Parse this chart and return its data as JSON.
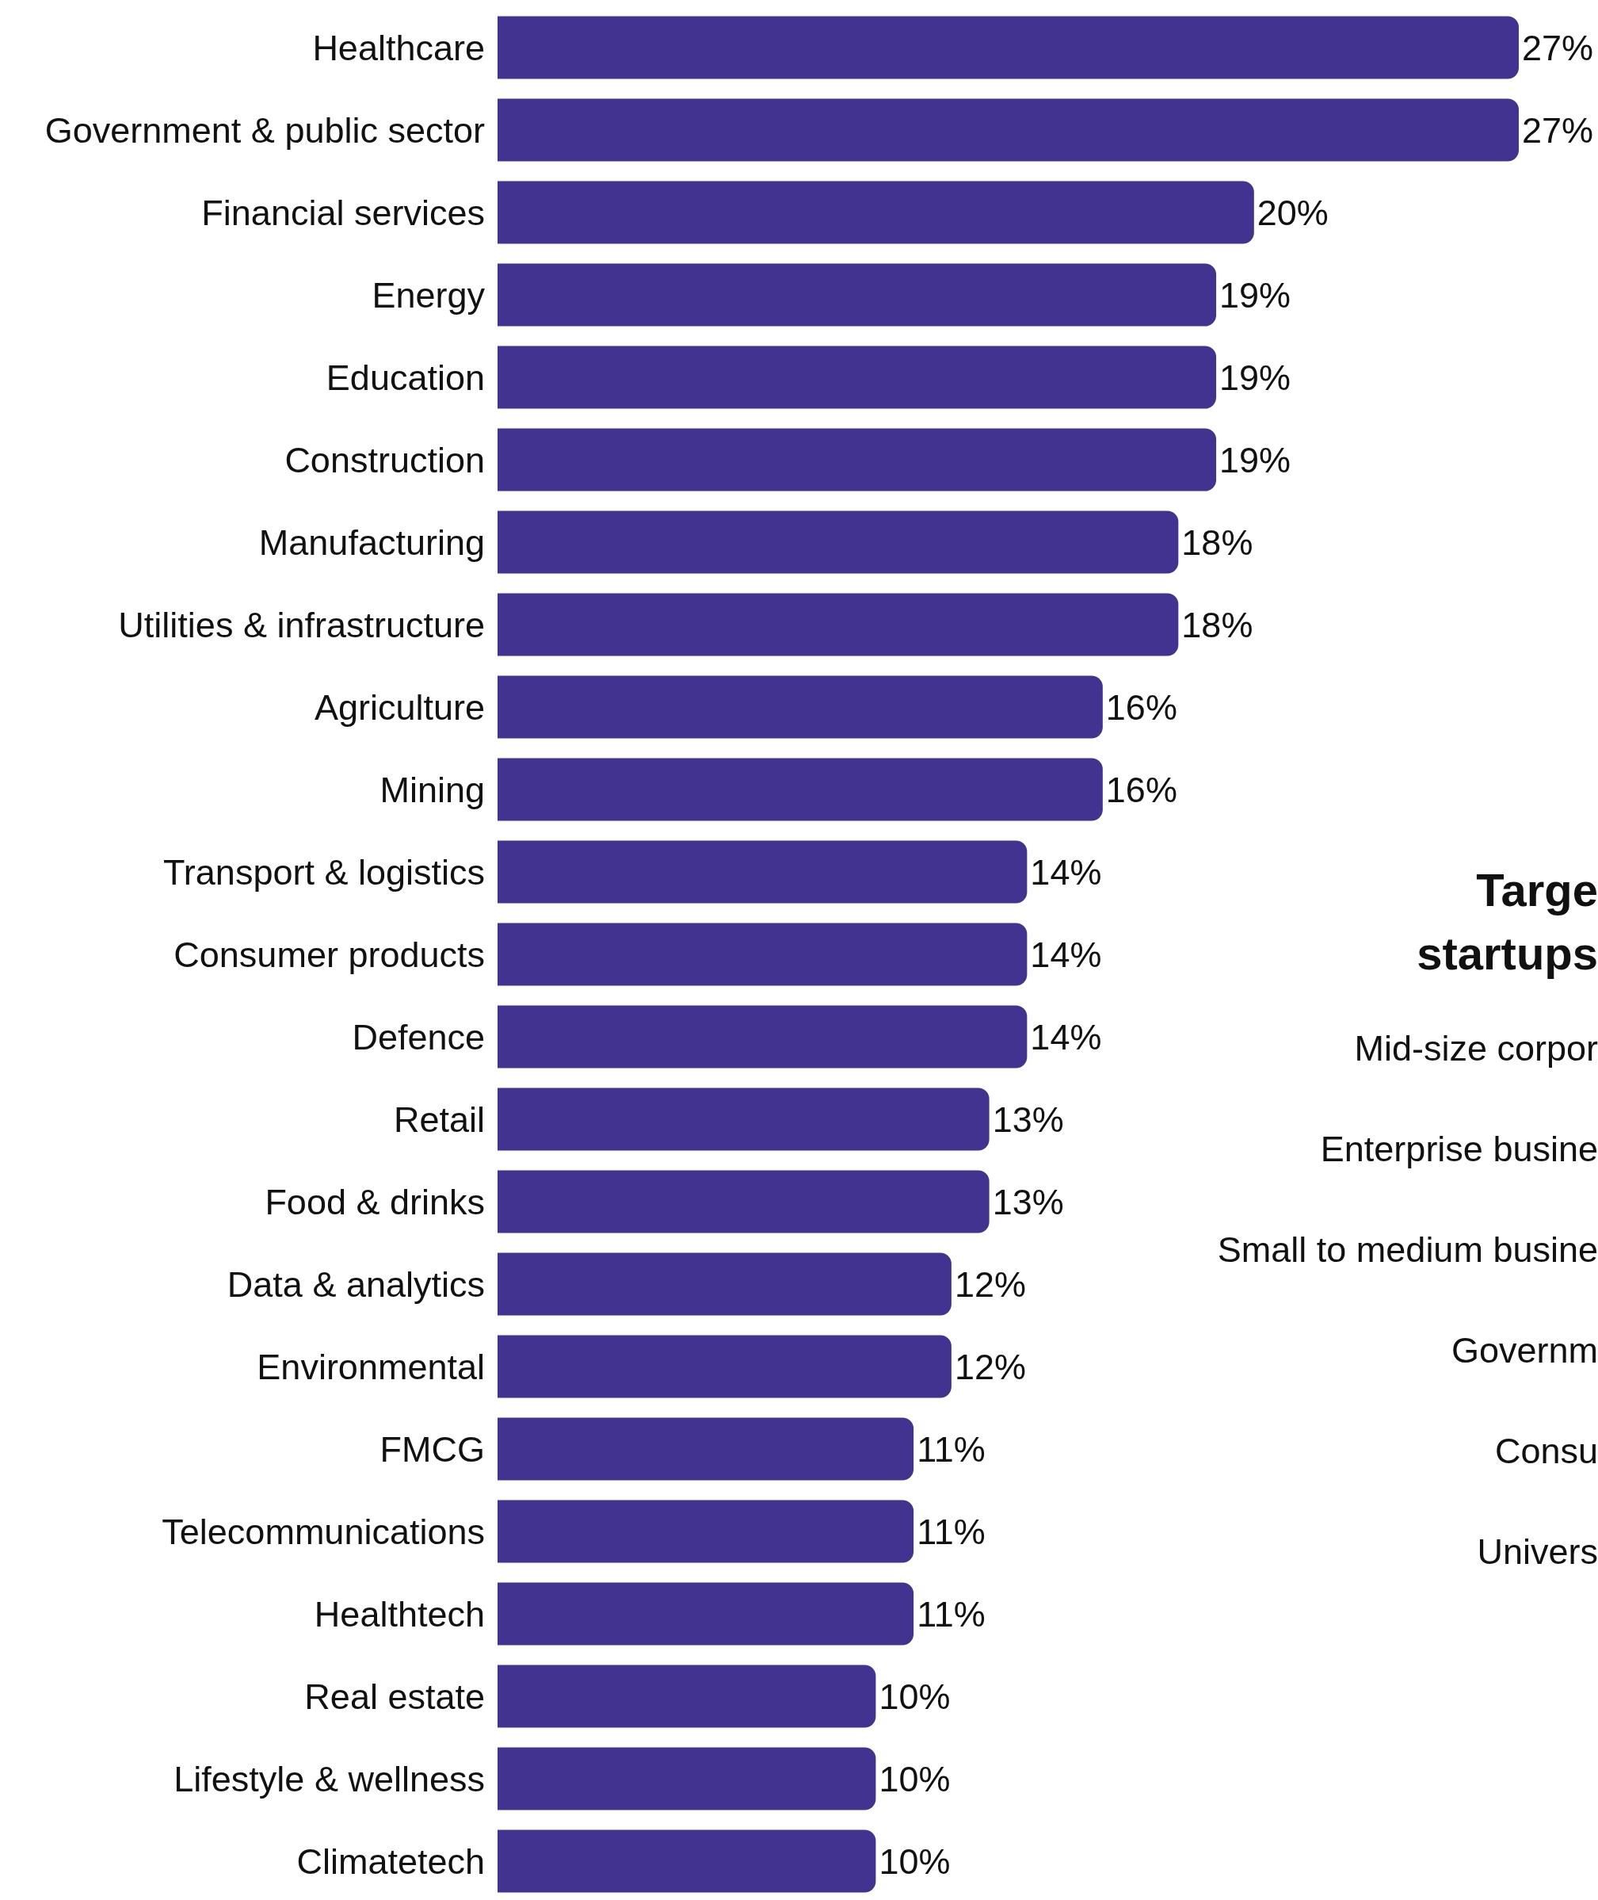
{
  "chart_data": [
    {
      "type": "bar",
      "orientation": "horizontal",
      "categories": [
        "Healthcare",
        "Government & public sector",
        "Financial services",
        "Energy",
        "Education",
        "Construction",
        "Manufacturing",
        "Utilities & infrastructure",
        "Agriculture",
        "Mining",
        "Transport & logistics",
        "Consumer products",
        "Defence",
        "Retail",
        "Food & drinks",
        "Data & analytics",
        "Environmental",
        "FMCG",
        "Telecommunications",
        "Healthtech",
        "Real estate",
        "Lifestyle & wellness",
        "Climatetech"
      ],
      "values": [
        27,
        27,
        20,
        19,
        19,
        19,
        18,
        18,
        16,
        16,
        14,
        14,
        14,
        13,
        13,
        12,
        12,
        11,
        11,
        11,
        10,
        10,
        10
      ],
      "value_labels": [
        "27%",
        "27%",
        "20%",
        "19%",
        "19%",
        "19%",
        "18%",
        "18%",
        "16%",
        "16%",
        "14%",
        "14%",
        "14%",
        "13%",
        "13%",
        "12%",
        "12%",
        "11%",
        "11%",
        "11%",
        "10%",
        "10%",
        "10%"
      ],
      "color": "#41338f",
      "tick_labels": "y",
      "grid": false,
      "legend": false
    },
    {
      "type": "other",
      "title": "Targe startups",
      "annotations": [
        "Mid-size corpor",
        "Enterprise busine",
        "Small to medium busine",
        "Governm",
        "Consu",
        "Univers"
      ]
    }
  ]
}
